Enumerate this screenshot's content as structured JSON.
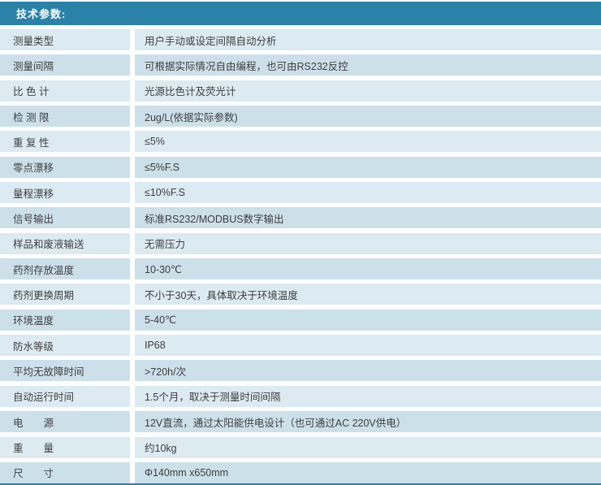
{
  "header": {
    "title": "技术参数:"
  },
  "table": {
    "rows": [
      {
        "label": "测量类型",
        "value": "用户手动或设定间隔自动分析"
      },
      {
        "label": "测量间隔",
        "value": "可根据实际情况自由编程，也可由RS232反控"
      },
      {
        "label": "比 色 计",
        "value": "光源比色计及荧光计"
      },
      {
        "label": "检 测 限",
        "value": "2ug/L(依据实际参数)"
      },
      {
        "label": "重 复 性",
        "value": "≤5%"
      },
      {
        "label": "零点漂移",
        "value": "≤5%F.S"
      },
      {
        "label": "量程漂移",
        "value": "≤10%F.S"
      },
      {
        "label": "信号输出",
        "value": "标准RS232/MODBUS数字输出"
      },
      {
        "label": "样品和废液输送",
        "value": "无需压力"
      },
      {
        "label": "药剂存放温度",
        "value": "10-30℃"
      },
      {
        "label": "药剂更换周期",
        "value": "不小于30天，具体取决于环境温度"
      },
      {
        "label": "环境温度",
        "value": "5-40℃"
      },
      {
        "label": "防水等级",
        "value": "IP68"
      },
      {
        "label": "平均无故障时间",
        "value": ">720h/次"
      },
      {
        "label": "自动运行时间",
        "value": "1.5个月，取决于测量时间间隔"
      },
      {
        "label": "电　　源",
        "value": "12V直流，通过太阳能供电设计（也可通过AC 220V供电）"
      },
      {
        "label": "重　　量",
        "value": "约10kg"
      },
      {
        "label": "尺　　寸",
        "value": "Φ140mm x650mm"
      }
    ]
  },
  "colors": {
    "header_bg": "#2b82a8",
    "row_light": "#dceaf2",
    "row_dark": "#cce0ea",
    "text": "#3e3e3e",
    "header_text": "#ffffff"
  }
}
